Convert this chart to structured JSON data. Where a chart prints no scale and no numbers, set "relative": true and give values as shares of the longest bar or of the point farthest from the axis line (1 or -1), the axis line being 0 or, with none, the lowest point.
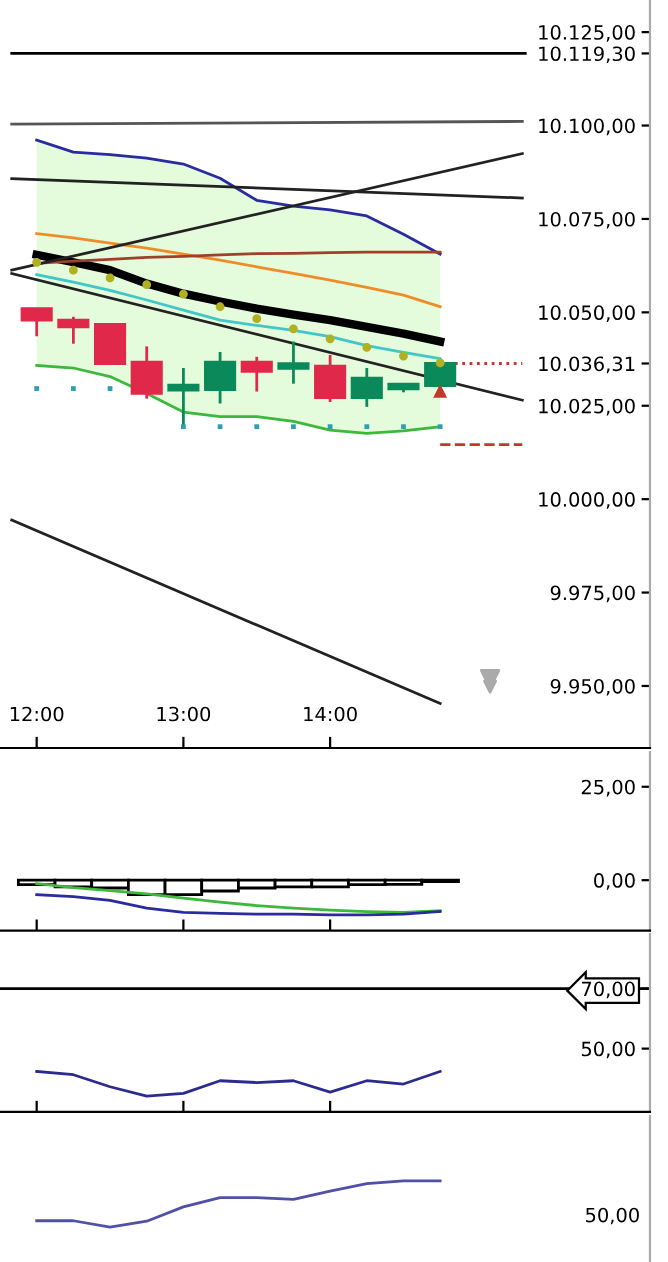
{
  "chart_data": [
    {
      "type": "candlestick",
      "x": [
        12,
        12.25,
        12.5,
        12.75,
        13,
        13.25,
        13.5,
        13.75,
        14,
        14.25,
        14.5,
        14.75
      ],
      "ohlc": [
        [
          10051.0,
          10051.0,
          10043.6,
          10047.9
        ],
        [
          10047.9,
          10048.8,
          10041.6,
          10046.1
        ],
        [
          10046.8,
          10046.8,
          10036.3,
          10036.3
        ],
        [
          10036.7,
          10040.9,
          10026.9,
          10028.3
        ],
        [
          10029.2,
          10035.1,
          10019.0,
          10029.6
        ],
        [
          10029.3,
          10039.4,
          10025.6,
          10036.7
        ],
        [
          10036.7,
          10038.1,
          10028.8,
          10034.2
        ],
        [
          10035.0,
          10042.2,
          10030.9,
          10035.4
        ],
        [
          10035.6,
          10038.6,
          10026.0,
          10027.2
        ],
        [
          10027.2,
          10035.1,
          10024.7,
          10032.4
        ],
        [
          10029.5,
          10030.6,
          10028.6,
          10029.8
        ],
        [
          10030.4,
          10037.0,
          10028.6,
          10036.31
        ]
      ],
      "colors": [
        "#e0284a",
        "#e0284a",
        "#e0284a",
        "#e0284a",
        "#0a8a5a",
        "#0a8a5a",
        "#e0284a",
        "#0a8a5a",
        "#e0284a",
        "#0a8a5a",
        "#0a8a5a",
        "#0a8a5a"
      ],
      "series": [
        {
          "type": "line",
          "color": "#2b2ba0",
          "values": [
            10096.1,
            10092.9,
            10092.2,
            10091.3,
            10089.7,
            10085.9,
            10080.0,
            10078.4,
            10077.4,
            10075.8,
            10070.9,
            10065.6
          ]
        },
        {
          "type": "line",
          "color": "#3cb83c",
          "values": [
            10035.8,
            10035.1,
            10032.8,
            10028.3,
            10023.3,
            10022.1,
            10022.1,
            10020.8,
            10018.5,
            10017.6,
            10018.3,
            10019.4
          ]
        },
        {
          "type": "line",
          "color": "#000000",
          "values": [
            10065.4,
            10063.4,
            10061.3,
            10057.7,
            10055.0,
            10052.9,
            10051.0,
            10049.4,
            10047.9,
            10046.1,
            10044.3,
            10042.2
          ],
          "lower": [
            10035.8,
            10035.1,
            10032.8,
            10028.3,
            10023.3,
            10022.1,
            10022.1,
            10020.8,
            10018.5,
            10017.6,
            10018.3,
            10019.4
          ],
          "upper": [
            10096.1,
            10092.9,
            10092.2,
            10091.3,
            10089.7,
            10085.9,
            10080.0,
            10078.4,
            10077.4,
            10075.8,
            10070.9,
            10065.6
          ]
        },
        {
          "type": "line",
          "color": "#f08c28",
          "values": [
            10071.1,
            10069.9,
            10068.5,
            10067.2,
            10065.6,
            10064.0,
            10062.2,
            10060.4,
            10058.6,
            10056.7,
            10054.6,
            10051.5
          ]
        },
        {
          "type": "line",
          "color": "#a0402a",
          "values": [
            10063.1,
            10063.7,
            10064.2,
            10064.7,
            10065.0,
            10065.4,
            10065.7,
            10065.8,
            10066.0,
            10066.1,
            10066.1,
            10066.1
          ]
        },
        {
          "type": "line",
          "color": "#40c8c8",
          "values": [
            10060.1,
            10058.1,
            10055.9,
            10053.3,
            10050.6,
            10047.9,
            10046.5,
            10045.2,
            10043.5,
            10041.1,
            10039.3,
            10037.6
          ]
        },
        {
          "type": "scatter",
          "color": "#b0b020",
          "marker": "circle",
          "values": [
            10063.4,
            10061.3,
            10059.2,
            10057.4,
            10054.9,
            10051.5,
            10048.3,
            10045.6,
            10042.9,
            10040.6,
            10038.3,
            10036.5
          ]
        },
        {
          "type": "scatter",
          "color": "#30a0b0",
          "marker": "square",
          "values": [
            10029.6,
            10029.6,
            10029.6,
            null,
            10019.4,
            10019.4,
            10019.4,
            10019.4,
            10019.4,
            10019.4,
            10019.4,
            10019.4
          ]
        },
        {
          "type": "line",
          "color": "#000000",
          "x": [
            11.83,
            15.33
          ],
          "values": [
            10119.3,
            10119.3
          ]
        },
        {
          "type": "line",
          "color": "#555555",
          "x": [
            11.83,
            15.31
          ],
          "values": [
            10100.4,
            10101.1
          ]
        },
        {
          "type": "line",
          "color": "#222222",
          "x": [
            11.83,
            15.31
          ],
          "values": [
            10085.8,
            10080.6
          ]
        },
        {
          "type": "line",
          "color": "#222222",
          "x": [
            11.83,
            15.31
          ],
          "values": [
            10061.3,
            10092.5
          ]
        },
        {
          "type": "line",
          "color": "#222222",
          "x": [
            11.83,
            15.31
          ],
          "values": [
            10060.4,
            10026.5
          ]
        },
        {
          "type": "line",
          "color": "#222222",
          "x": [
            11.83,
            14.75
          ],
          "values": [
            9994.4,
            9945.3
          ]
        },
        {
          "type": "line",
          "color": "#c0392b",
          "line_style": "dashed",
          "x": [
            14.75,
            15.31
          ],
          "values": [
            10014.6,
            10014.6
          ]
        },
        {
          "type": "line",
          "color": "#c0392b",
          "line_style": "dotted",
          "x": [
            14.75,
            15.31
          ],
          "values": [
            10036.31,
            10036.31
          ]
        },
        {
          "type": "scatter",
          "color": "#c0392b",
          "marker": "triangle",
          "x": [
            14.75
          ],
          "values": [
            10029.0
          ]
        }
      ],
      "xlim": [
        11.75,
        16.18
      ],
      "xticks": [
        {
          "value": 12,
          "label": "12:00"
        },
        {
          "value": 13,
          "label": "13:00"
        },
        {
          "value": 14,
          "label": "14:00"
        }
      ],
      "ylim": [
        9933.4,
        10133.6
      ],
      "yticks": [
        {
          "value": 10036.31,
          "label": "10.036,31"
        },
        {
          "value": 10119.3,
          "label": "10.119,30"
        },
        {
          "value": 9950,
          "label": "9.950,00"
        },
        {
          "value": 9975,
          "label": "9.975,00"
        },
        {
          "value": 10000,
          "label": "10.000,00"
        },
        {
          "value": 10025,
          "label": "10.025,00"
        },
        {
          "value": 10050,
          "label": "10.050,00"
        },
        {
          "value": 10075,
          "label": "10.075,00"
        },
        {
          "value": 10100,
          "label": "10.100,00"
        },
        {
          "value": 10125,
          "label": "10.125,00"
        }
      ],
      "grid": false,
      "legend": false
    },
    {
      "type": "bar",
      "x": [
        12,
        12.25,
        12.5,
        12.75,
        13,
        13.25,
        13.5,
        13.75,
        14,
        14.25,
        14.5,
        14.75
      ],
      "series": [
        {
          "type": "bar",
          "color": "#ffffff",
          "values": [
            -1.2,
            -1.8,
            -2.1,
            -3.9,
            -3.9,
            -2.9,
            -2.1,
            -1.8,
            -1.8,
            -1.2,
            -1.1,
            -0.4
          ]
        },
        {
          "type": "line",
          "color": "#3cb83c",
          "values": [
            -0.9,
            -2.0,
            -2.8,
            -3.7,
            -4.8,
            -5.9,
            -6.8,
            -7.5,
            -8.0,
            -8.4,
            -8.6,
            -8.2
          ]
        },
        {
          "type": "line",
          "color": "#2b2ba0",
          "values": [
            -3.9,
            -4.4,
            -5.4,
            -7.5,
            -8.6,
            -8.9,
            -9.1,
            -9.1,
            -9.3,
            -9.3,
            -9.1,
            -8.4
          ]
        }
      ],
      "xlim": [
        11.75,
        16.18
      ],
      "xticks": [
        {
          "value": 12,
          "label": null
        },
        {
          "value": 13,
          "label": null
        },
        {
          "value": 14,
          "label": null
        }
      ],
      "ylim": [
        -13.5,
        34.3
      ],
      "yticks": [
        {
          "value": 0,
          "label": "0,00"
        },
        {
          "value": 25,
          "label": "25,00"
        }
      ],
      "tick_labels": "y",
      "grid": false,
      "legend": false
    },
    {
      "type": "line",
      "x": [
        12,
        12.25,
        12.5,
        12.75,
        13,
        13.25,
        13.5,
        13.75,
        14,
        14.25,
        14.5,
        14.75
      ],
      "series": [
        {
          "type": "line",
          "color": "#2b2b8f",
          "values": [
            42.4,
            41.3,
            37.3,
            34.2,
            35.1,
            39.3,
            38.7,
            39.3,
            35.5,
            39.3,
            38.2,
            42.4
          ]
        }
      ],
      "ref_lines": [
        {
          "axis": "y",
          "value": 70
        }
      ],
      "xlim": [
        11.75,
        16.18
      ],
      "xticks": [
        {
          "value": 12,
          "label": null
        },
        {
          "value": 13,
          "label": null
        },
        {
          "value": 14,
          "label": null
        }
      ],
      "ylim": [
        28.9,
        88.2
      ],
      "yticks": [
        {
          "value": 50,
          "label": "50,00"
        },
        {
          "value": 70,
          "label": "70,00"
        }
      ],
      "tick_labels": "y",
      "grid": false,
      "legend": false
    },
    {
      "type": "line",
      "categories": [
        null,
        null,
        null,
        null,
        null,
        null,
        null,
        null,
        null,
        null,
        null,
        null
      ],
      "series": [
        {
          "type": "line",
          "color": "#5050a8",
          "values": [
            0.14,
            0.14,
            0,
            0.13,
            0.44,
            0.64,
            0.64,
            0.6,
            0.78,
            0.94,
            1,
            1
          ]
        }
      ],
      "relative": true,
      "annotations": [
        "50,00"
      ],
      "tick_labels": false,
      "grid": false,
      "legend": false
    }
  ]
}
